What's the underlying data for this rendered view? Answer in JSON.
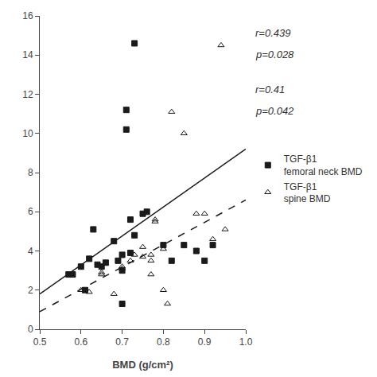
{
  "chart_data": {
    "type": "scatter",
    "xlabel": "BMD (g/cm²)",
    "xlim": [
      0.5,
      1.0
    ],
    "ylim": [
      0,
      16
    ],
    "xticks": [
      0.5,
      0.6,
      0.7,
      0.8,
      0.9,
      {
        "value": 1.0,
        "label": "1.0"
      }
    ],
    "yticks": [
      0,
      2,
      4,
      6,
      8,
      10,
      12,
      14,
      16
    ],
    "grid": false,
    "legend": "right",
    "series": [
      {
        "type": "line",
        "line_style": "solid",
        "color": "#1a1a1a",
        "x": [
          0.5,
          1.0
        ],
        "values": [
          1.8,
          9.2
        ]
      },
      {
        "type": "line",
        "line_style": "dashed",
        "color": "#1a1a1a",
        "x": [
          0.5,
          1.0
        ],
        "values": [
          0.9,
          6.6
        ]
      },
      {
        "type": "scatter",
        "name": "TGF-β1\nfemoral neck BMD",
        "marker": "square",
        "color": "#1a1a1a",
        "x": [
          0.57,
          0.58,
          0.6,
          0.61,
          0.62,
          0.63,
          0.64,
          0.65,
          0.66,
          0.68,
          0.69,
          0.7,
          0.7,
          0.7,
          0.71,
          0.71,
          0.72,
          0.72,
          0.73,
          0.73,
          0.75,
          0.76,
          0.8,
          0.82,
          0.85,
          0.88,
          0.9,
          0.92
        ],
        "values": [
          2.8,
          2.8,
          3.2,
          2.0,
          3.6,
          5.1,
          3.3,
          3.2,
          3.4,
          4.5,
          3.5,
          3.8,
          3.0,
          1.3,
          11.2,
          10.2,
          3.9,
          5.6,
          4.8,
          14.6,
          5.9,
          6.0,
          4.3,
          3.5,
          4.3,
          4.0,
          3.5,
          4.3
        ]
      },
      {
        "type": "scatter",
        "name": "TGF-β1\nspine BMD",
        "marker": "triangle-open",
        "color": "#1a1a1a",
        "x": [
          0.6,
          0.62,
          0.65,
          0.65,
          0.68,
          0.7,
          0.7,
          0.72,
          0.73,
          0.75,
          0.75,
          0.77,
          0.77,
          0.77,
          0.78,
          0.78,
          0.8,
          0.8,
          0.81,
          0.82,
          0.85,
          0.88,
          0.9,
          0.92,
          0.94,
          0.95
        ],
        "values": [
          2.0,
          1.9,
          2.8,
          2.9,
          1.8,
          3.2,
          3.1,
          3.5,
          3.8,
          4.2,
          3.7,
          3.8,
          3.5,
          2.8,
          5.6,
          5.5,
          4.1,
          2.0,
          1.3,
          11.1,
          10.0,
          5.9,
          5.9,
          4.6,
          14.5,
          5.1
        ]
      }
    ],
    "annotations": [
      "r=0.439",
      "p=0.028",
      "r=0.41",
      "p=0.042"
    ]
  }
}
